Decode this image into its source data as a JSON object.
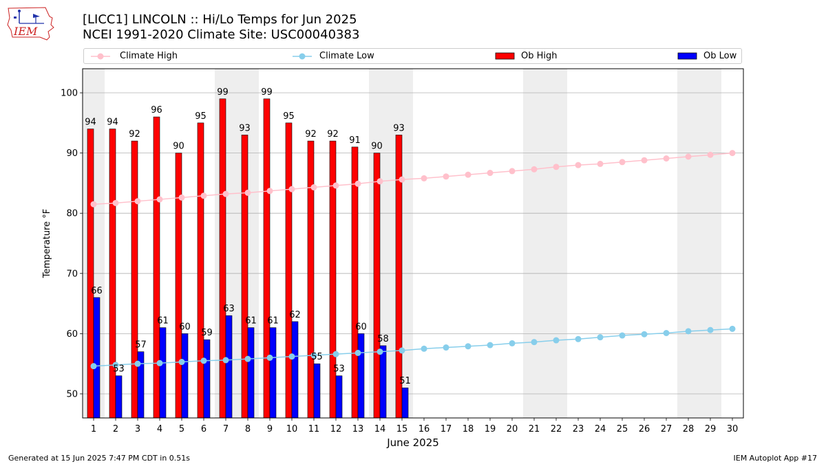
{
  "header": {
    "logo_text": "IEM",
    "title_line1": "[LICC1] LINCOLN :: Hi/Lo Temps for Jun 2025",
    "title_line2": "NCEI 1991-2020 Climate Site: USC00040383"
  },
  "legend": {
    "climate_high": "Climate High",
    "climate_low": "Climate Low",
    "ob_high": "Ob High",
    "ob_low": "Ob Low"
  },
  "footer": {
    "left": "Generated at 15 Jun 2025 7:47 PM CDT in 0.51s",
    "right": "IEM Autoplot App #17"
  },
  "colors": {
    "ob_high": "#ff0000",
    "ob_low": "#0000ff",
    "climate_high": "#ffc0cb",
    "climate_low": "#87ceeb",
    "weekend_shade": "#eeeeee",
    "grid": "#b0b0b0"
  },
  "chart_data": {
    "type": "bar",
    "xlabel": "June 2025",
    "ylabel": "Temperature °F",
    "ylim": [
      46,
      104
    ],
    "yticks": [
      50,
      60,
      70,
      80,
      90,
      100
    ],
    "grid": "horizontal",
    "legend_position": "top",
    "days": [
      1,
      2,
      3,
      4,
      5,
      6,
      7,
      8,
      9,
      10,
      11,
      12,
      13,
      14,
      15,
      16,
      17,
      18,
      19,
      20,
      21,
      22,
      23,
      24,
      25,
      26,
      27,
      28,
      29,
      30
    ],
    "weekend_days": [
      1,
      7,
      8,
      14,
      15,
      21,
      22,
      28,
      29
    ],
    "series": [
      {
        "name": "Ob High",
        "kind": "bar",
        "values": [
          94,
          94,
          92,
          96,
          90,
          95,
          99,
          93,
          99,
          95,
          92,
          92,
          91,
          90,
          93
        ]
      },
      {
        "name": "Ob Low",
        "kind": "bar",
        "values": [
          66,
          53,
          57,
          61,
          60,
          59,
          63,
          61,
          61,
          62,
          55,
          53,
          60,
          58,
          51
        ]
      },
      {
        "name": "Climate High",
        "kind": "line",
        "values": [
          81.5,
          81.7,
          82.0,
          82.3,
          82.6,
          82.9,
          83.2,
          83.4,
          83.7,
          84.0,
          84.3,
          84.6,
          84.9,
          85.3,
          85.6,
          85.8,
          86.1,
          86.4,
          86.7,
          87.0,
          87.3,
          87.7,
          88.0,
          88.2,
          88.5,
          88.8,
          89.1,
          89.4,
          89.7,
          90.0
        ]
      },
      {
        "name": "Climate Low",
        "kind": "line",
        "values": [
          54.6,
          54.8,
          55.0,
          55.1,
          55.3,
          55.5,
          55.6,
          55.8,
          56.0,
          56.2,
          56.4,
          56.6,
          56.8,
          57.0,
          57.2,
          57.5,
          57.7,
          57.9,
          58.1,
          58.4,
          58.6,
          58.9,
          59.1,
          59.4,
          59.7,
          59.9,
          60.1,
          60.4,
          60.6,
          60.8
        ]
      }
    ]
  }
}
